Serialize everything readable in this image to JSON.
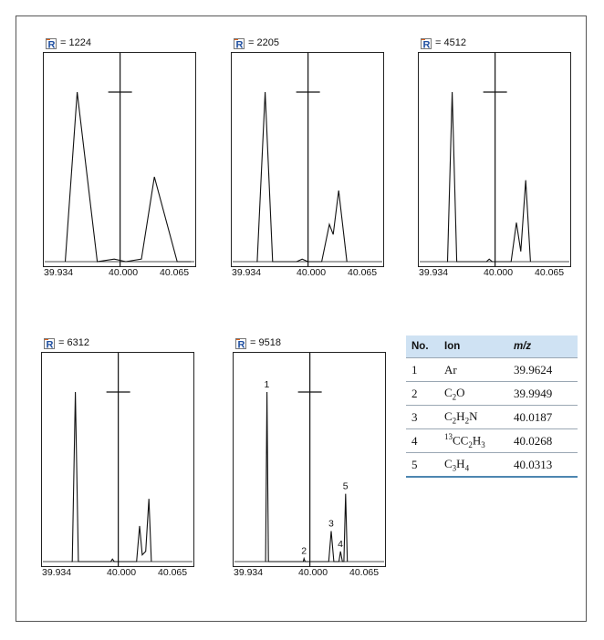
{
  "chart_data": [
    {
      "type": "line",
      "resolution_label": "= 1224",
      "x_ticks": [
        "39.934",
        "40.000",
        "40.065"
      ],
      "xlim": [
        39.934,
        40.065
      ],
      "ylim": [
        0,
        100
      ],
      "marker_x": 40.0,
      "points": [
        [
          39.952,
          0
        ],
        [
          39.9624,
          100
        ],
        [
          39.98,
          0
        ],
        [
          39.9949,
          1.5
        ],
        [
          40.005,
          0
        ],
        [
          40.0187,
          1.5
        ],
        [
          40.03,
          50
        ],
        [
          40.05,
          0
        ],
        [
          40.062,
          0
        ]
      ]
    },
    {
      "type": "line",
      "resolution_label": "= 2205",
      "x_ticks": [
        "39.934",
        "40.000",
        "40.065"
      ],
      "xlim": [
        39.934,
        40.065
      ],
      "ylim": [
        0,
        100
      ],
      "marker_x": 40.0,
      "points": [
        [
          39.955,
          0
        ],
        [
          39.9555,
          0
        ],
        [
          39.9624,
          100
        ],
        [
          39.969,
          0
        ],
        [
          39.99,
          0
        ],
        [
          39.9949,
          1.5
        ],
        [
          40.0,
          0
        ],
        [
          40.012,
          0
        ],
        [
          40.0187,
          22
        ],
        [
          40.022,
          16
        ],
        [
          40.0268,
          42
        ],
        [
          40.034,
          0
        ]
      ]
    },
    {
      "type": "line",
      "resolution_label": "= 4512",
      "x_ticks": [
        "39.934",
        "40.000",
        "40.065"
      ],
      "xlim": [
        39.934,
        40.065
      ],
      "ylim": [
        0,
        100
      ],
      "marker_x": 40.0,
      "points": [
        [
          39.958,
          0
        ],
        [
          39.9584,
          0
        ],
        [
          39.9624,
          100
        ],
        [
          39.9664,
          0
        ],
        [
          39.9925,
          0
        ],
        [
          39.9949,
          1.5
        ],
        [
          39.9975,
          0
        ],
        [
          40.014,
          0
        ],
        [
          40.0187,
          23
        ],
        [
          40.0225,
          6
        ],
        [
          40.0268,
          48
        ],
        [
          40.031,
          0
        ]
      ]
    },
    {
      "type": "line",
      "resolution_label": "= 6312",
      "x_ticks": [
        "39.934",
        "40.000",
        "40.065"
      ],
      "xlim": [
        39.934,
        40.065
      ],
      "ylim": [
        0,
        100
      ],
      "marker_x": 40.0,
      "points": [
        [
          39.959,
          0
        ],
        [
          39.9597,
          0
        ],
        [
          39.9624,
          100
        ],
        [
          39.9651,
          0
        ],
        [
          39.9935,
          0
        ],
        [
          39.9949,
          1.5
        ],
        [
          39.9965,
          0
        ],
        [
          40.016,
          0
        ],
        [
          40.0187,
          21
        ],
        [
          40.021,
          4
        ],
        [
          40.024,
          6
        ],
        [
          40.0268,
          37
        ],
        [
          40.029,
          0
        ]
      ]
    },
    {
      "type": "line",
      "resolution_label": "= 9518",
      "x_ticks": [
        "39.934",
        "40.000",
        "40.065"
      ],
      "xlim": [
        39.934,
        40.065
      ],
      "ylim": [
        0,
        100
      ],
      "marker_x": 40.0,
      "points": [
        [
          39.961,
          0
        ],
        [
          39.9612,
          0
        ],
        [
          39.9624,
          100
        ],
        [
          39.9637,
          0
        ],
        [
          39.9942,
          0
        ],
        [
          39.9949,
          1.8
        ],
        [
          39.9958,
          0
        ],
        [
          40.0165,
          0
        ],
        [
          40.0187,
          18
        ],
        [
          40.021,
          0
        ],
        [
          40.0255,
          0
        ],
        [
          40.0268,
          6
        ],
        [
          40.0285,
          0
        ],
        [
          40.0298,
          0
        ],
        [
          40.0313,
          40
        ],
        [
          40.0328,
          0
        ]
      ],
      "peak_labels": [
        {
          "text": "1",
          "x": 39.9624,
          "y": 100
        },
        {
          "text": "2",
          "x": 39.9949,
          "y": 1.8
        },
        {
          "text": "3",
          "x": 40.0187,
          "y": 18
        },
        {
          "text": "4",
          "x": 40.0268,
          "y": 6
        },
        {
          "text": "5",
          "x": 40.0313,
          "y": 40
        }
      ]
    }
  ],
  "table": {
    "headers": [
      "No.",
      "Ion",
      "m/z"
    ],
    "rows": [
      {
        "no": "1",
        "ion_html": "Ar",
        "ion_text": "Ar",
        "mz": "39.9624"
      },
      {
        "no": "2",
        "ion_html": "C<sub>2</sub>O",
        "ion_text": "C2O",
        "mz": "39.9949"
      },
      {
        "no": "3",
        "ion_html": "C<sub>2</sub>H<sub>2</sub>N",
        "ion_text": "C2H2N",
        "mz": "40.0187"
      },
      {
        "no": "4",
        "ion_html": "<sup>13</sup>CC<sub>2</sub>H<sub>3</sub>",
        "ion_text": "13CC2H3",
        "mz": "40.0268"
      },
      {
        "no": "5",
        "ion_html": "C<sub>3</sub>H<sub>4</sub>",
        "ion_text": "C3H4",
        "mz": "40.0313"
      }
    ]
  },
  "colors": {
    "icon_r": "#1f4fa0",
    "icon_accent": "#e0601a",
    "table_header_bg": "#cfe2f3",
    "table_rule": "#4d86b0"
  }
}
